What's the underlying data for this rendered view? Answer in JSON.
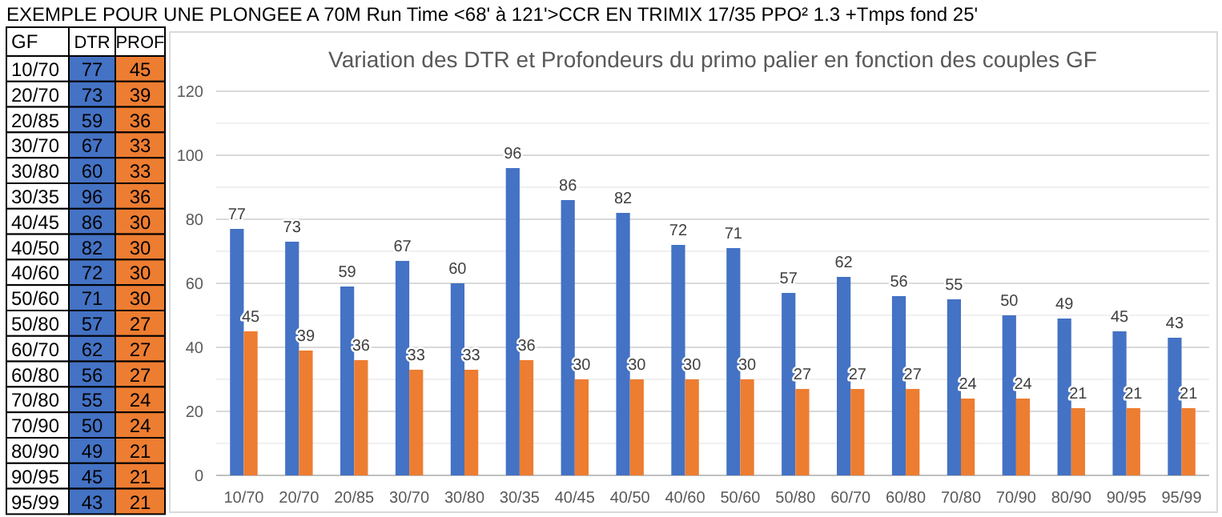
{
  "chart_data": [
    {
      "type": "other",
      "annotations": [
        "EXEMPLE POUR UNE PLONGEE A 70M Run Time <68' à 121'>CCR EN  TRIMIX 17/35 PPO² 1.3 +Tmps fond 25'"
      ],
      "ylabel": "GF",
      "categories": [
        "10/70",
        "20/70",
        "20/85",
        "30/70",
        "30/80",
        "30/35",
        "40/45",
        "40/50",
        "40/60",
        "50/60",
        "50/80",
        "60/70",
        "60/80",
        "70/80",
        "70/90",
        "80/90",
        "90/95",
        "95/99"
      ],
      "series": [
        {
          "name": "DTR",
          "color": "#4472c4",
          "values": [
            77,
            73,
            59,
            67,
            60,
            96,
            86,
            82,
            72,
            71,
            57,
            62,
            56,
            55,
            50,
            49,
            45,
            43
          ]
        },
        {
          "name": "PROF",
          "color": "#ed7d31",
          "values": [
            45,
            39,
            36,
            33,
            33,
            36,
            30,
            30,
            30,
            30,
            27,
            27,
            27,
            24,
            24,
            21,
            21,
            21
          ]
        }
      ],
      "data_labels": true,
      "legend": "top"
    },
    {
      "type": "bar",
      "title": "Variation des DTR et Profondeurs du primo palier en fonction des couples GF",
      "categories": [
        "10/70",
        "20/70",
        "20/85",
        "30/70",
        "30/80",
        "30/35",
        "40/45",
        "40/50",
        "40/60",
        "50/60",
        "50/80",
        "60/70",
        "60/80",
        "70/80",
        "70/90",
        "80/90",
        "90/95",
        "95/99"
      ],
      "series": [
        {
          "color": "#4472c4",
          "values": [
            77,
            73,
            59,
            67,
            60,
            96,
            86,
            82,
            72,
            71,
            57,
            62,
            56,
            55,
            50,
            49,
            45,
            43
          ]
        },
        {
          "color": "#ed7d31",
          "values": [
            45,
            39,
            36,
            33,
            33,
            36,
            30,
            30,
            30,
            30,
            27,
            27,
            27,
            24,
            24,
            21,
            21,
            21
          ]
        }
      ],
      "ylim": [
        0,
        120
      ],
      "yticks": [
        0,
        {
          "value": 10,
          "label": null
        },
        20,
        {
          "value": 30,
          "label": null
        },
        40,
        {
          "value": 50,
          "label": null
        },
        60,
        {
          "value": 70,
          "label": null
        },
        80,
        {
          "value": 90,
          "label": null
        },
        100,
        {
          "value": 110,
          "label": null
        },
        120
      ],
      "grid": "y",
      "data_labels": true
    }
  ]
}
